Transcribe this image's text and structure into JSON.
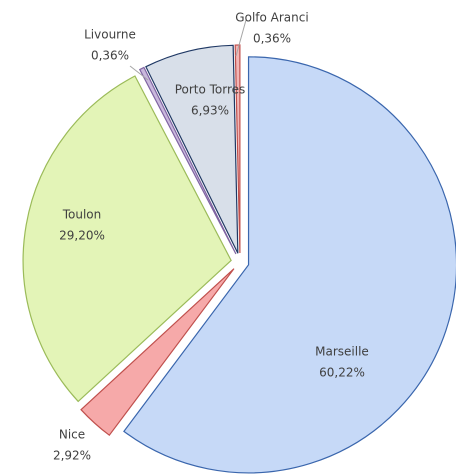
{
  "chart_data": {
    "type": "pie",
    "categories": [
      "Marseille",
      "Nice",
      "Toulon",
      "Livourne",
      "Porto Torres",
      "Golfo Aranci"
    ],
    "values": [
      60.22,
      2.92,
      29.2,
      0.36,
      6.93,
      0.36
    ],
    "value_labels": [
      "60,22%",
      "2,92%",
      "29,20%",
      "0,36%",
      "6,93%",
      "0,36%"
    ],
    "colors": [
      "#c6d9f7",
      "#f6a9a9",
      "#e3f4b7",
      "#c9b8dc",
      "#d8dfe9",
      "#f2b6b6"
    ],
    "stroke_colors": [
      "#3a66ad",
      "#c0504d",
      "#9bbb59",
      "#7f64a2",
      "#1f3864",
      "#c0504d"
    ]
  }
}
